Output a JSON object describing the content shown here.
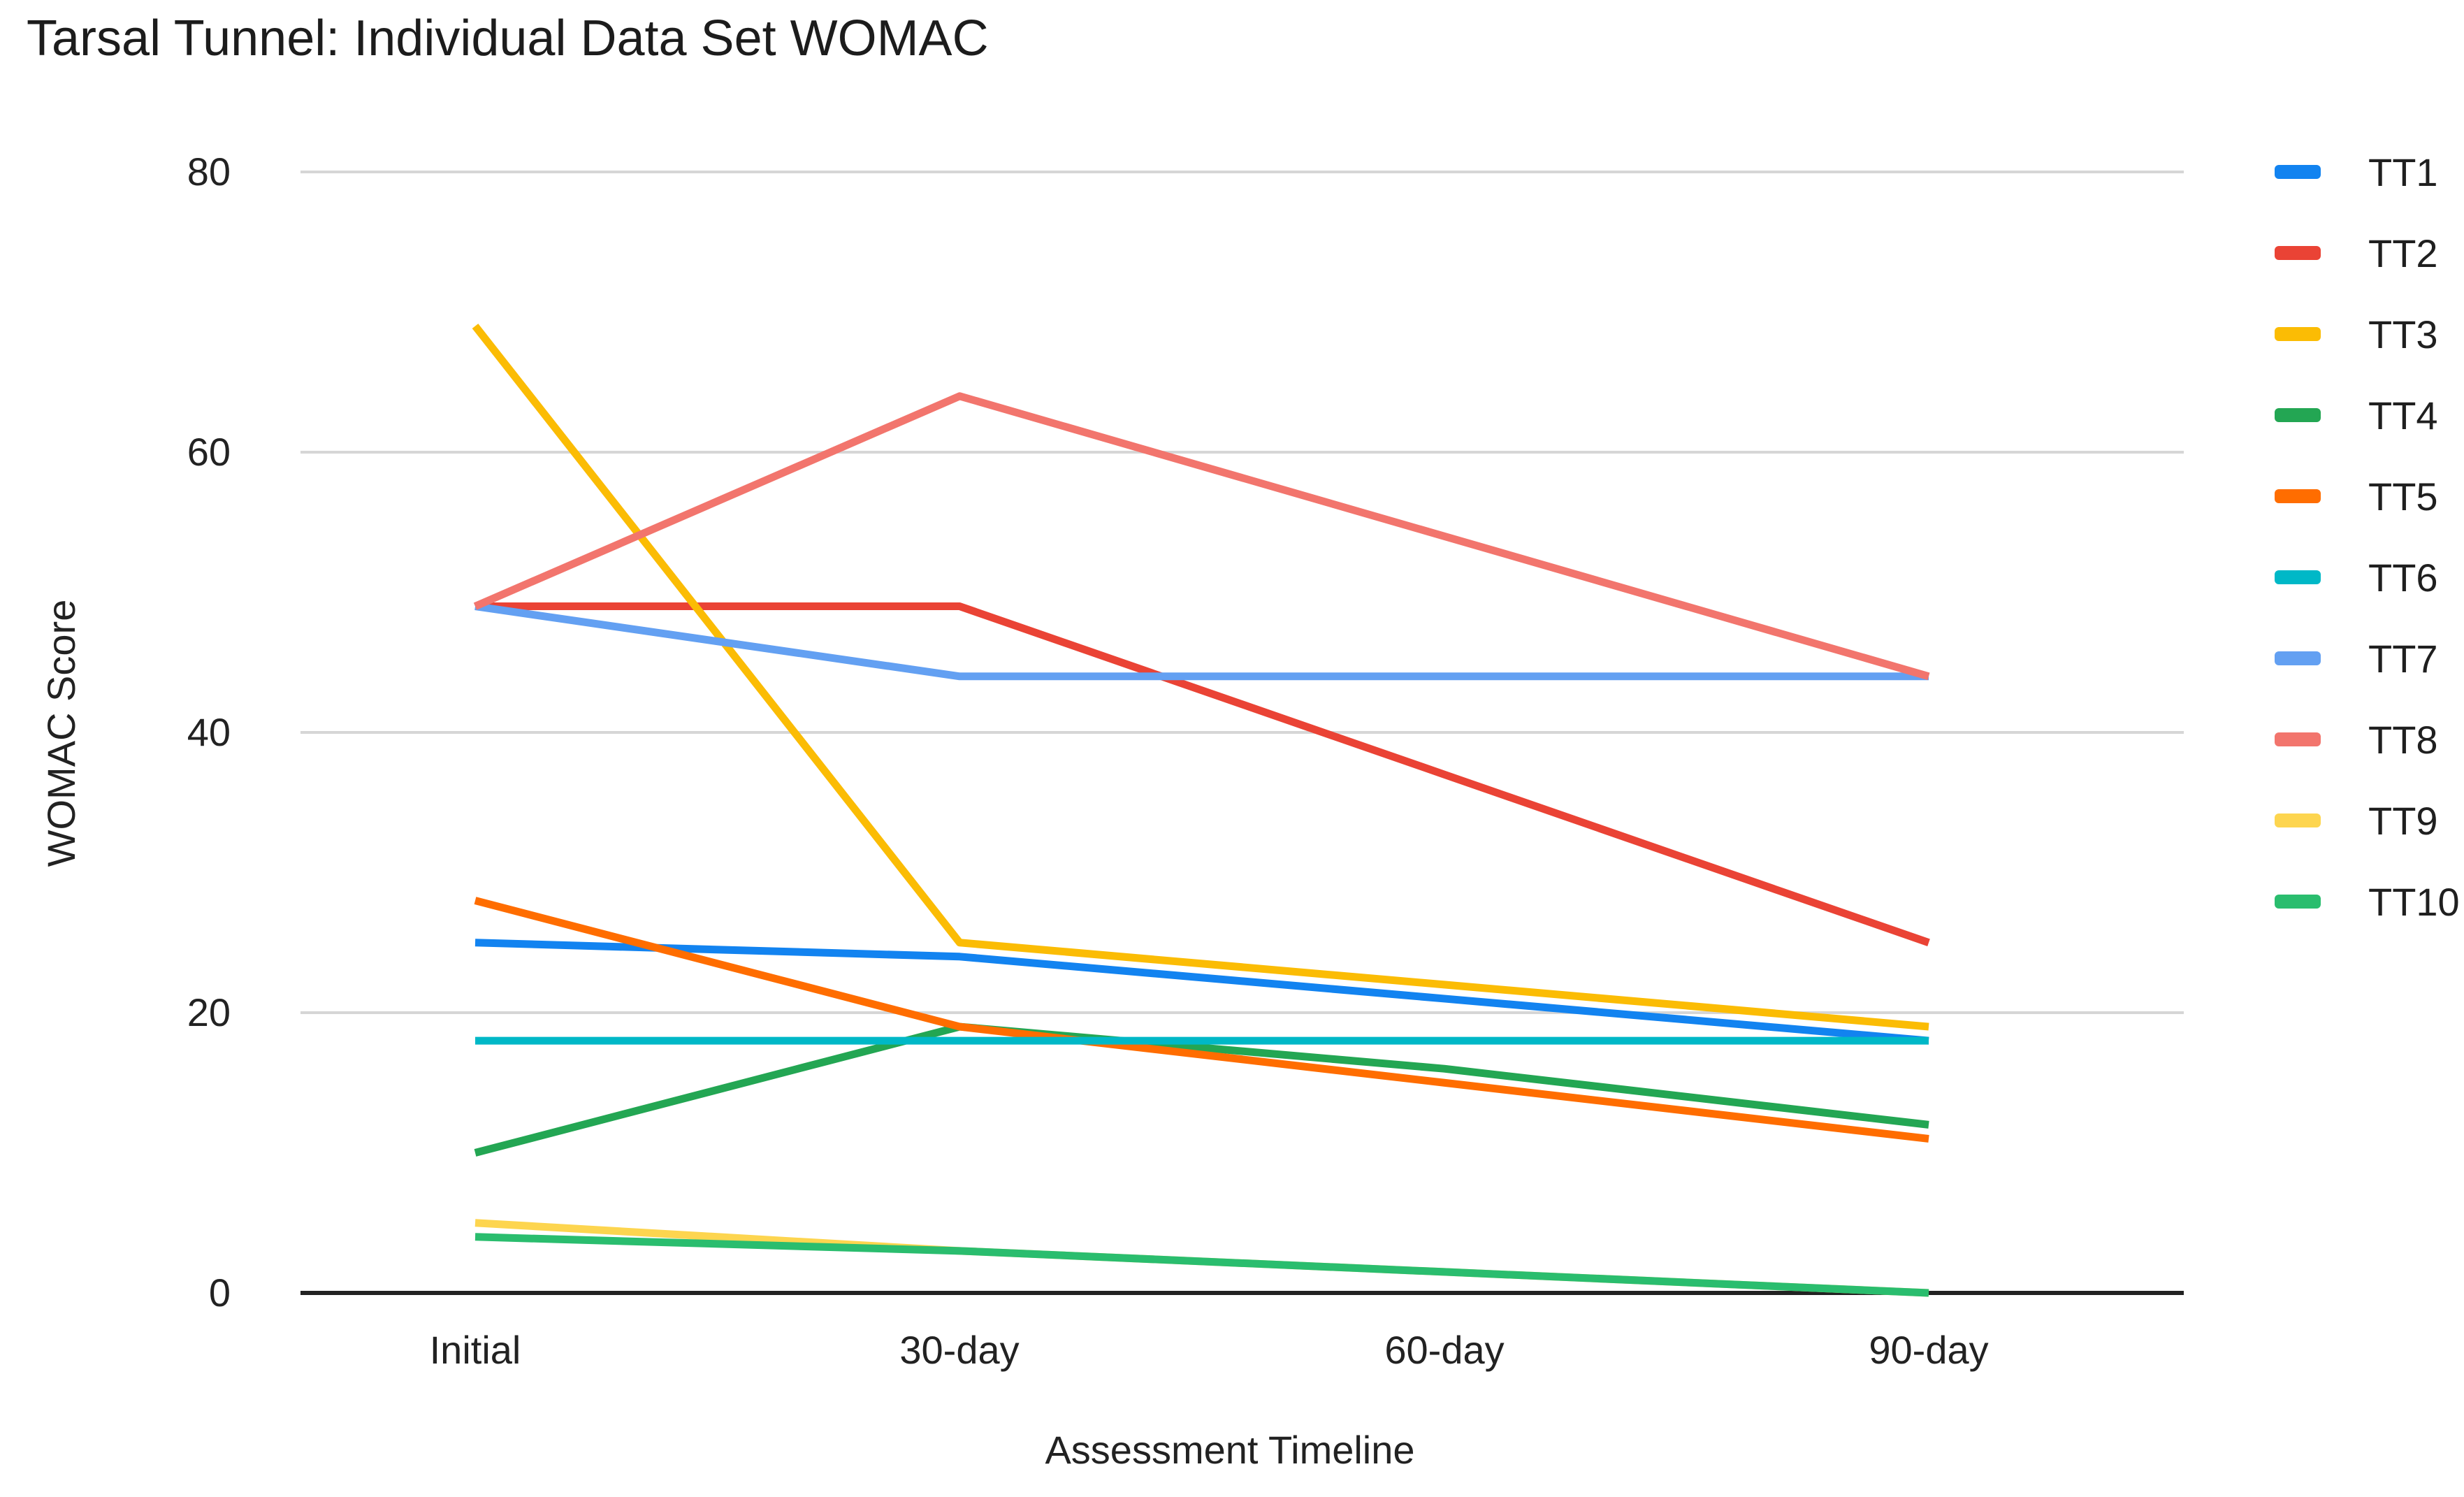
{
  "title": "Tarsal Tunnel: Individual Data Set WOMAC",
  "chart_data": {
    "type": "line",
    "title": "Tarsal Tunnel: Individual Data Set WOMAC",
    "xlabel": "Assessment Timeline",
    "ylabel": "WOMAC Score",
    "x_categories": [
      "Initial",
      "30-day",
      "60-day",
      "90-day"
    ],
    "yticks": [
      0,
      20,
      40,
      60,
      80
    ],
    "ylim": [
      0,
      80
    ],
    "grid": true,
    "legend_position": "right",
    "axis_line_color": "#222222",
    "gridline_color": "#d6d6d6",
    "series": [
      {
        "name": "TT1",
        "color": "#1283f0",
        "values": [
          25,
          24,
          21,
          18
        ]
      },
      {
        "name": "TT2",
        "color": "#ea4335",
        "values": [
          49,
          49,
          37,
          25
        ]
      },
      {
        "name": "TT3",
        "color": "#fbbc04",
        "values": [
          69,
          25,
          22,
          19
        ]
      },
      {
        "name": "TT4",
        "color": "#23a653",
        "values": [
          10,
          19,
          16,
          12
        ]
      },
      {
        "name": "TT5",
        "color": "#ff6d00",
        "values": [
          28,
          19,
          15,
          11
        ]
      },
      {
        "name": "TT6",
        "color": "#00b8c7",
        "values": [
          18,
          18,
          18,
          18
        ]
      },
      {
        "name": "TT7",
        "color": "#63a0f2",
        "values": [
          49,
          44,
          44,
          44
        ]
      },
      {
        "name": "TT8",
        "color": "#f2756d",
        "values": [
          49,
          64,
          54,
          44
        ]
      },
      {
        "name": "TT9",
        "color": "#fdd54f",
        "values": [
          5,
          3,
          1.5,
          0
        ]
      },
      {
        "name": "TT10",
        "color": "#2abd6e",
        "values": [
          4,
          3,
          1.5,
          0
        ]
      }
    ]
  }
}
